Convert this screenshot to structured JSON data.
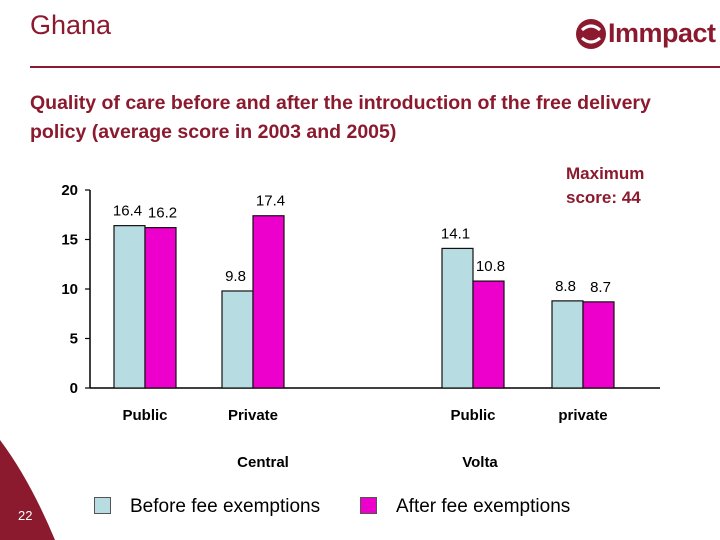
{
  "slide": {
    "title": "Ghana",
    "subtitle": "Quality of care before and after the introduction of the free delivery policy (average score in 2003 and 2005)",
    "max_score_note_line1": "Maximum",
    "max_score_note_line2": "score: 44",
    "page_number": "22",
    "logo_text": "Immpact",
    "brand_color": "#8b1a2e"
  },
  "chart_data": {
    "type": "bar",
    "title": "",
    "xlabel": "",
    "ylabel": "",
    "ylim": [
      0,
      20
    ],
    "yticks": [
      0,
      5,
      10,
      15,
      20
    ],
    "categories": [
      "Public",
      "Private",
      "Public",
      "private"
    ],
    "groups": [
      {
        "label": "Central",
        "categories": [
          "Public",
          "Private"
        ]
      },
      {
        "label": "Volta",
        "categories": [
          "Public",
          "private"
        ]
      }
    ],
    "series": [
      {
        "name": "Before fee exemptions",
        "color": "#b7dde3",
        "values": [
          16.4,
          9.8,
          14.1,
          8.8
        ],
        "labels": [
          "16.4",
          "9.8",
          "14.1",
          "8.8"
        ]
      },
      {
        "name": "After fee exemptions",
        "color": "#ee00cc",
        "values": [
          16.2,
          17.4,
          10.8,
          8.7
        ],
        "labels": [
          "16.2",
          "17.4",
          "10.8",
          "8.7"
        ]
      }
    ],
    "legend_position": "bottom"
  }
}
